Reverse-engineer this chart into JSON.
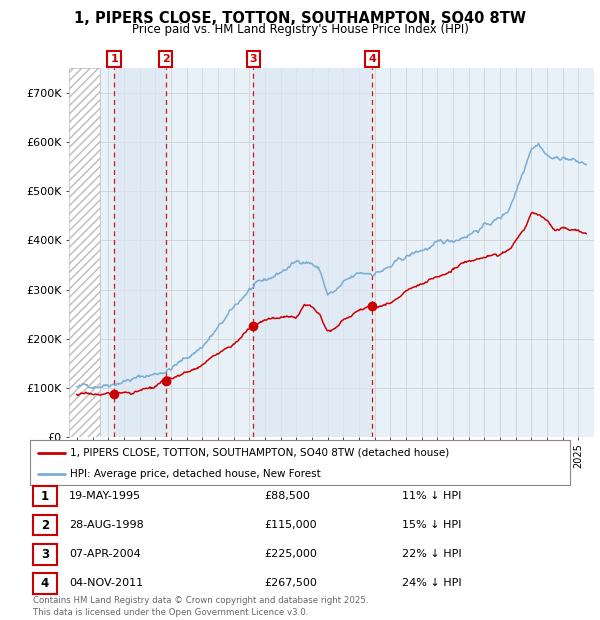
{
  "title_line1": "1, PIPERS CLOSE, TOTTON, SOUTHAMPTON, SO40 8TW",
  "title_line2": "Price paid vs. HM Land Registry's House Price Index (HPI)",
  "transactions": [
    {
      "num": 1,
      "date_num": 1995.38,
      "price": 88500,
      "label": "19-MAY-1995",
      "pct": "11%"
    },
    {
      "num": 2,
      "date_num": 1998.66,
      "price": 115000,
      "label": "28-AUG-1998",
      "pct": "15%"
    },
    {
      "num": 3,
      "date_num": 2004.27,
      "price": 225000,
      "label": "07-APR-2004",
      "pct": "22%"
    },
    {
      "num": 4,
      "date_num": 2011.84,
      "price": 267500,
      "label": "04-NOV-2011",
      "pct": "24%"
    }
  ],
  "ylim": [
    0,
    750000
  ],
  "yticks": [
    0,
    100000,
    200000,
    300000,
    400000,
    500000,
    600000,
    700000
  ],
  "ytick_labels": [
    "£0",
    "£100K",
    "£200K",
    "£300K",
    "£400K",
    "£500K",
    "£600K",
    "£700K"
  ],
  "xlim_start": 1992.5,
  "xlim_end": 2026.0,
  "hatch_end": 1994.5,
  "red_line_color": "#cc0000",
  "blue_line_color": "#7aadd4",
  "background_color": "#ffffff",
  "plot_bg_color": "#e8f0f8",
  "hatch_color": "#bbbbbb",
  "grid_color": "#cccccc",
  "legend_line1": "1, PIPERS CLOSE, TOTTON, SOUTHAMPTON, SO40 8TW (detached house)",
  "legend_line2": "HPI: Average price, detached house, New Forest",
  "footer": "Contains HM Land Registry data © Crown copyright and database right 2025.\nThis data is licensed under the Open Government Licence v3.0.",
  "table_rows": [
    [
      "1",
      "19-MAY-1995",
      "£88,500",
      "11% ↓ HPI"
    ],
    [
      "2",
      "28-AUG-1998",
      "£115,000",
      "15% ↓ HPI"
    ],
    [
      "3",
      "07-APR-2004",
      "£225,000",
      "22% ↓ HPI"
    ],
    [
      "4",
      "04-NOV-2011",
      "£267,500",
      "24% ↓ HPI"
    ]
  ]
}
